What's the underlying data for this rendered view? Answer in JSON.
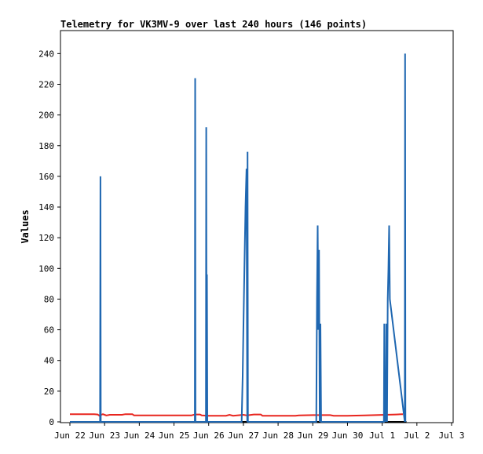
{
  "chart_data": {
    "type": "line",
    "title": "Telemetry for VK3MV-9 over last 240 hours (146 points)",
    "xlabel": "",
    "ylabel": "Values",
    "x_ticks": [
      "Jun 22",
      "Jun 23",
      "Jun 24",
      "Jun 25",
      "Jun 26",
      "Jun 27",
      "Jun 28",
      "Jun 29",
      "Jun 30",
      "Jul 1",
      "Jul 2",
      "Jul 3"
    ],
    "xlim": [
      0,
      11
    ],
    "y_ticks": [
      0,
      20,
      40,
      60,
      80,
      100,
      120,
      140,
      160,
      180,
      200,
      220,
      240
    ],
    "ylim": [
      0,
      255
    ],
    "grid": false,
    "colors": {
      "series_blue": "#1f67b1",
      "series_red": "#e8251e",
      "series_black": "#000000",
      "frame": "#000000"
    },
    "series": [
      {
        "color": "#e8251e",
        "points": [
          [
            0.0,
            5
          ],
          [
            0.7,
            5
          ],
          [
            0.8,
            4.8
          ],
          [
            0.85,
            4
          ],
          [
            0.9,
            4.6
          ],
          [
            0.95,
            5
          ],
          [
            1.0,
            4.6
          ],
          [
            1.05,
            4.2
          ],
          [
            1.15,
            4.6
          ],
          [
            1.5,
            4.6
          ],
          [
            1.6,
            5
          ],
          [
            1.8,
            5
          ],
          [
            1.85,
            4.2
          ],
          [
            2.0,
            4.2
          ],
          [
            3.5,
            4.2
          ],
          [
            3.6,
            4.8
          ],
          [
            3.75,
            4.8
          ],
          [
            3.8,
            4.2
          ],
          [
            4.0,
            4
          ],
          [
            4.5,
            4
          ],
          [
            4.6,
            4.6
          ],
          [
            4.7,
            4
          ],
          [
            5.0,
            4.6
          ],
          [
            5.1,
            4.2
          ],
          [
            5.3,
            4.8
          ],
          [
            5.5,
            4.8
          ],
          [
            5.55,
            4
          ],
          [
            6.0,
            4
          ],
          [
            6.5,
            4
          ],
          [
            6.6,
            4.2
          ],
          [
            7.0,
            4.4
          ],
          [
            7.5,
            4.4
          ],
          [
            7.6,
            4
          ],
          [
            8.0,
            4
          ],
          [
            8.5,
            4.2
          ],
          [
            8.9,
            4.5
          ],
          [
            9.4,
            4.8
          ],
          [
            9.6,
            5
          ]
        ]
      },
      {
        "color": "#000000",
        "points": [
          [
            0.0,
            0
          ],
          [
            9.7,
            0
          ]
        ]
      },
      {
        "color": "#1f67b1",
        "points": [
          [
            0.0,
            0
          ],
          [
            0.87,
            0
          ],
          [
            0.88,
            160
          ],
          [
            0.89,
            0
          ],
          [
            3.6,
            0
          ],
          [
            3.61,
            224
          ],
          [
            3.62,
            0
          ],
          [
            3.92,
            0
          ],
          [
            3.93,
            192
          ],
          [
            3.94,
            0
          ],
          [
            3.95,
            96
          ],
          [
            3.96,
            0
          ],
          [
            4.95,
            0
          ],
          [
            4.98,
            30
          ],
          [
            5.0,
            60
          ],
          [
            5.03,
            100
          ],
          [
            5.06,
            140
          ],
          [
            5.09,
            165
          ],
          [
            5.11,
            0
          ],
          [
            5.12,
            176
          ],
          [
            5.13,
            0
          ],
          [
            7.1,
            0
          ],
          [
            7.12,
            80
          ],
          [
            7.14,
            128
          ],
          [
            7.16,
            60
          ],
          [
            7.18,
            112
          ],
          [
            7.2,
            0
          ],
          [
            7.22,
            64
          ],
          [
            7.24,
            0
          ],
          [
            9.05,
            0
          ],
          [
            9.06,
            64
          ],
          [
            9.07,
            0
          ],
          [
            9.08,
            32
          ],
          [
            9.1,
            0
          ],
          [
            9.12,
            64
          ],
          [
            9.14,
            0
          ],
          [
            9.16,
            80
          ],
          [
            9.18,
            100
          ],
          [
            9.2,
            128
          ],
          [
            9.22,
            80
          ],
          [
            9.65,
            0
          ],
          [
            9.66,
            240
          ],
          [
            9.67,
            0
          ]
        ]
      }
    ]
  }
}
